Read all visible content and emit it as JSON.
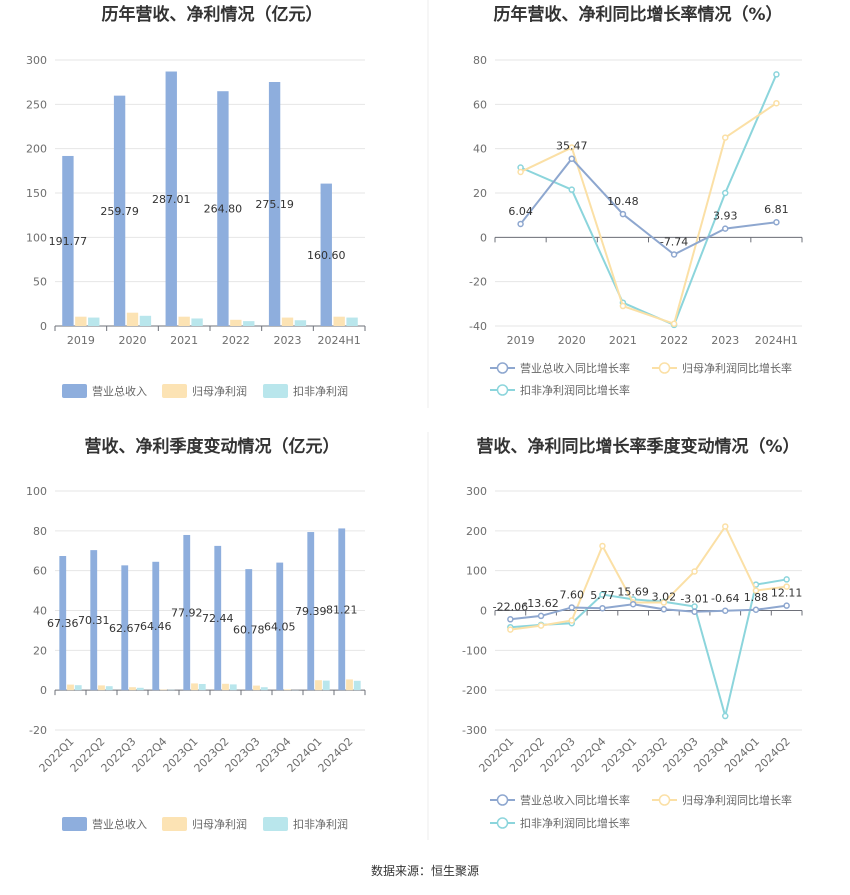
{
  "source": "数据来源：恒生聚源",
  "colors": {
    "revenue": "#8eaedd",
    "parent_profit": "#fce3b4",
    "deducted_profit": "#b9e6ec",
    "line_revenue": "#8ea7cf",
    "line_parent": "#fbe0a6",
    "line_deducted": "#8cd5dc"
  },
  "chart_data": [
    {
      "type": "bar",
      "title": "历年营收、净利情况（亿元）",
      "categories": [
        "2019",
        "2020",
        "2021",
        "2022",
        "2023",
        "2024H1"
      ],
      "ylim": [
        0,
        300
      ],
      "yticks": [
        0,
        50,
        100,
        150,
        200,
        250,
        300
      ],
      "series": [
        {
          "name": "营业总收入",
          "values": [
            191.77,
            259.79,
            287.01,
            264.8,
            275.19,
            160.6
          ],
          "labels": [
            "191.77",
            "259.79",
            "287.01",
            "264.80",
            "275.19",
            "160.60"
          ]
        },
        {
          "name": "归母净利润",
          "values": [
            10.5,
            15,
            10.5,
            7,
            9.5,
            10.5
          ]
        },
        {
          "name": "扣非净利润",
          "values": [
            9.5,
            11.5,
            8.5,
            5.5,
            6.5,
            9.5
          ]
        }
      ],
      "grid": true,
      "legend": "bottom"
    },
    {
      "type": "line",
      "title": "历年营收、净利同比增长率情况（%）",
      "categories": [
        "2019",
        "2020",
        "2021",
        "2022",
        "2023",
        "2024H1"
      ],
      "ylim": [
        -40,
        80
      ],
      "yticks": [
        -40,
        -20,
        0,
        20,
        40,
        60,
        80
      ],
      "series": [
        {
          "name": "营业总收入同比增长率",
          "values": [
            6.04,
            35.47,
            10.48,
            -7.74,
            3.93,
            6.81
          ],
          "labels": [
            "6.04",
            "35.47",
            "10.48",
            "-7.74",
            "3.93",
            "6.81"
          ]
        },
        {
          "name": "归母净利润同比增长率",
          "values": [
            29.5,
            40.5,
            -31,
            -39,
            45,
            60.5
          ]
        },
        {
          "name": "扣非净利润同比增长率",
          "values": [
            31.5,
            21.5,
            -29.5,
            -39.5,
            20,
            73.5
          ]
        }
      ],
      "grid": true,
      "legend": "bottom"
    },
    {
      "type": "bar",
      "title": "营收、净利季度变动情况（亿元）",
      "categories": [
        "2022Q1",
        "2022Q2",
        "2022Q3",
        "2022Q4",
        "2023Q1",
        "2023Q2",
        "2023Q3",
        "2023Q4",
        "2024Q1",
        "2024Q2"
      ],
      "ylim": [
        -20,
        100
      ],
      "yticks": [
        -20,
        0,
        20,
        40,
        60,
        80,
        100
      ],
      "series": [
        {
          "name": "营业总收入",
          "values": [
            67.36,
            70.31,
            62.67,
            64.46,
            77.92,
            72.44,
            60.78,
            64.05,
            79.39,
            81.21
          ],
          "labels": [
            "67.36",
            "70.31",
            "62.67",
            "64.46",
            "77.92",
            "72.44",
            "60.78",
            "64.05",
            "79.39",
            "81.21"
          ]
        },
        {
          "name": "归母净利润",
          "values": [
            2.8,
            2.4,
            1.5,
            0.3,
            3.4,
            3.2,
            2.3,
            0.4,
            5.0,
            5.4
          ]
        },
        {
          "name": "扣非净利润",
          "values": [
            2.5,
            2.0,
            1.2,
            0.2,
            3.1,
            2.9,
            1.5,
            0.1,
            4.8,
            4.7
          ]
        }
      ],
      "grid": true,
      "legend": "bottom"
    },
    {
      "type": "line",
      "title": "营收、净利同比增长率季度变动情况（%）",
      "categories": [
        "2022Q1",
        "2022Q2",
        "2022Q3",
        "2022Q4",
        "2023Q1",
        "2023Q2",
        "2023Q3",
        "2023Q4",
        "2024Q1",
        "2024Q2"
      ],
      "ylim": [
        -300,
        300
      ],
      "yticks": [
        -300,
        -200,
        -100,
        0,
        100,
        200,
        300
      ],
      "series": [
        {
          "name": "营业总收入同比增长率",
          "values": [
            -22.06,
            -13.62,
            7.6,
            5.77,
            15.69,
            3.02,
            -3.01,
            -0.64,
            1.88,
            12.11
          ],
          "labels": [
            "-22.06",
            "-13.62",
            "7.60",
            "5.77",
            "15.69",
            "3.02",
            "-3.01",
            "-0.64",
            "1.88",
            "12.11"
          ]
        },
        {
          "name": "归母净利润同比增长率",
          "values": [
            -48,
            -38,
            -25,
            162,
            20,
            20,
            98,
            211,
            50,
            60
          ]
        },
        {
          "name": "扣非净利润同比增长率",
          "values": [
            -42,
            -36,
            -32,
            40,
            28,
            22,
            10,
            -265,
            65,
            78
          ]
        }
      ],
      "grid": true,
      "legend": "bottom"
    }
  ]
}
